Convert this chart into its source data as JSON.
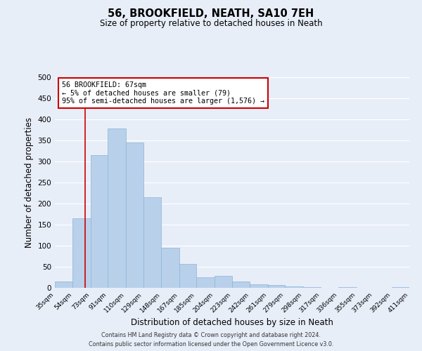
{
  "title": "56, BROOKFIELD, NEATH, SA10 7EH",
  "subtitle": "Size of property relative to detached houses in Neath",
  "xlabel": "Distribution of detached houses by size in Neath",
  "ylabel": "Number of detached properties",
  "bar_color": "#b8d0ea",
  "bar_edge_color": "#8cb4d8",
  "background_color": "#e8eef8",
  "grid_color": "#ffffff",
  "vline_x": 67,
  "vline_color": "#cc0000",
  "annotation_title": "56 BROOKFIELD: 67sqm",
  "annotation_line2": "← 5% of detached houses are smaller (79)",
  "annotation_line3": "95% of semi-detached houses are larger (1,576) →",
  "annotation_box_color": "#ffffff",
  "annotation_box_edge_color": "#cc0000",
  "ylim": [
    0,
    500
  ],
  "yticks": [
    0,
    50,
    100,
    150,
    200,
    250,
    300,
    350,
    400,
    450,
    500
  ],
  "bin_edges": [
    35,
    54,
    73,
    91,
    110,
    129,
    148,
    167,
    185,
    204,
    223,
    242,
    261,
    279,
    298,
    317,
    336,
    355,
    373,
    392,
    411
  ],
  "bar_heights": [
    15,
    165,
    315,
    378,
    345,
    215,
    95,
    57,
    25,
    29,
    15,
    9,
    6,
    4,
    1,
    0,
    2,
    0,
    0,
    2
  ],
  "footer_line1": "Contains HM Land Registry data © Crown copyright and database right 2024.",
  "footer_line2": "Contains public sector information licensed under the Open Government Licence v3.0."
}
